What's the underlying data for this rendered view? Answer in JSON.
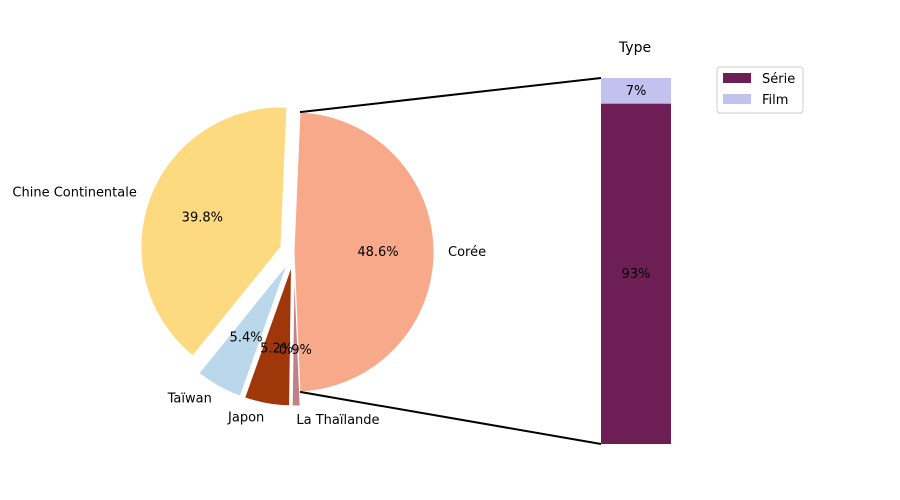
{
  "chart_data": [
    {
      "type": "pie",
      "slices": [
        {
          "label": "Corée",
          "value": 48.6,
          "pct_label": "48.6%",
          "color": "#f7a98a",
          "exploded": false
        },
        {
          "label": "Chine Continentale",
          "value": 39.8,
          "pct_label": "39.8%",
          "color": "#fdd97f",
          "exploded": true
        },
        {
          "label": "Taïwan",
          "value": 5.4,
          "pct_label": "5.4%",
          "color": "#bad7ec",
          "exploded": true
        },
        {
          "label": "Japon",
          "value": 5.2,
          "pct_label": "5.2%",
          "color": "#a0370a",
          "exploded": true
        },
        {
          "label": "La Thaïlande",
          "value": 0.9,
          "pct_label": "0.9%",
          "color": "#bf8088",
          "exploded": true
        }
      ]
    },
    {
      "type": "bar",
      "stacked": true,
      "title": "Type",
      "breakdown_of": "Corée",
      "series": [
        {
          "name": "Série",
          "value": 93,
          "label": "93%",
          "color": "#6d1f55"
        },
        {
          "name": "Film",
          "value": 7,
          "label": "7%",
          "color": "#c3c1ee"
        }
      ],
      "legend": {
        "placement": "top-right",
        "entries": [
          "Série",
          "Film"
        ]
      }
    }
  ]
}
